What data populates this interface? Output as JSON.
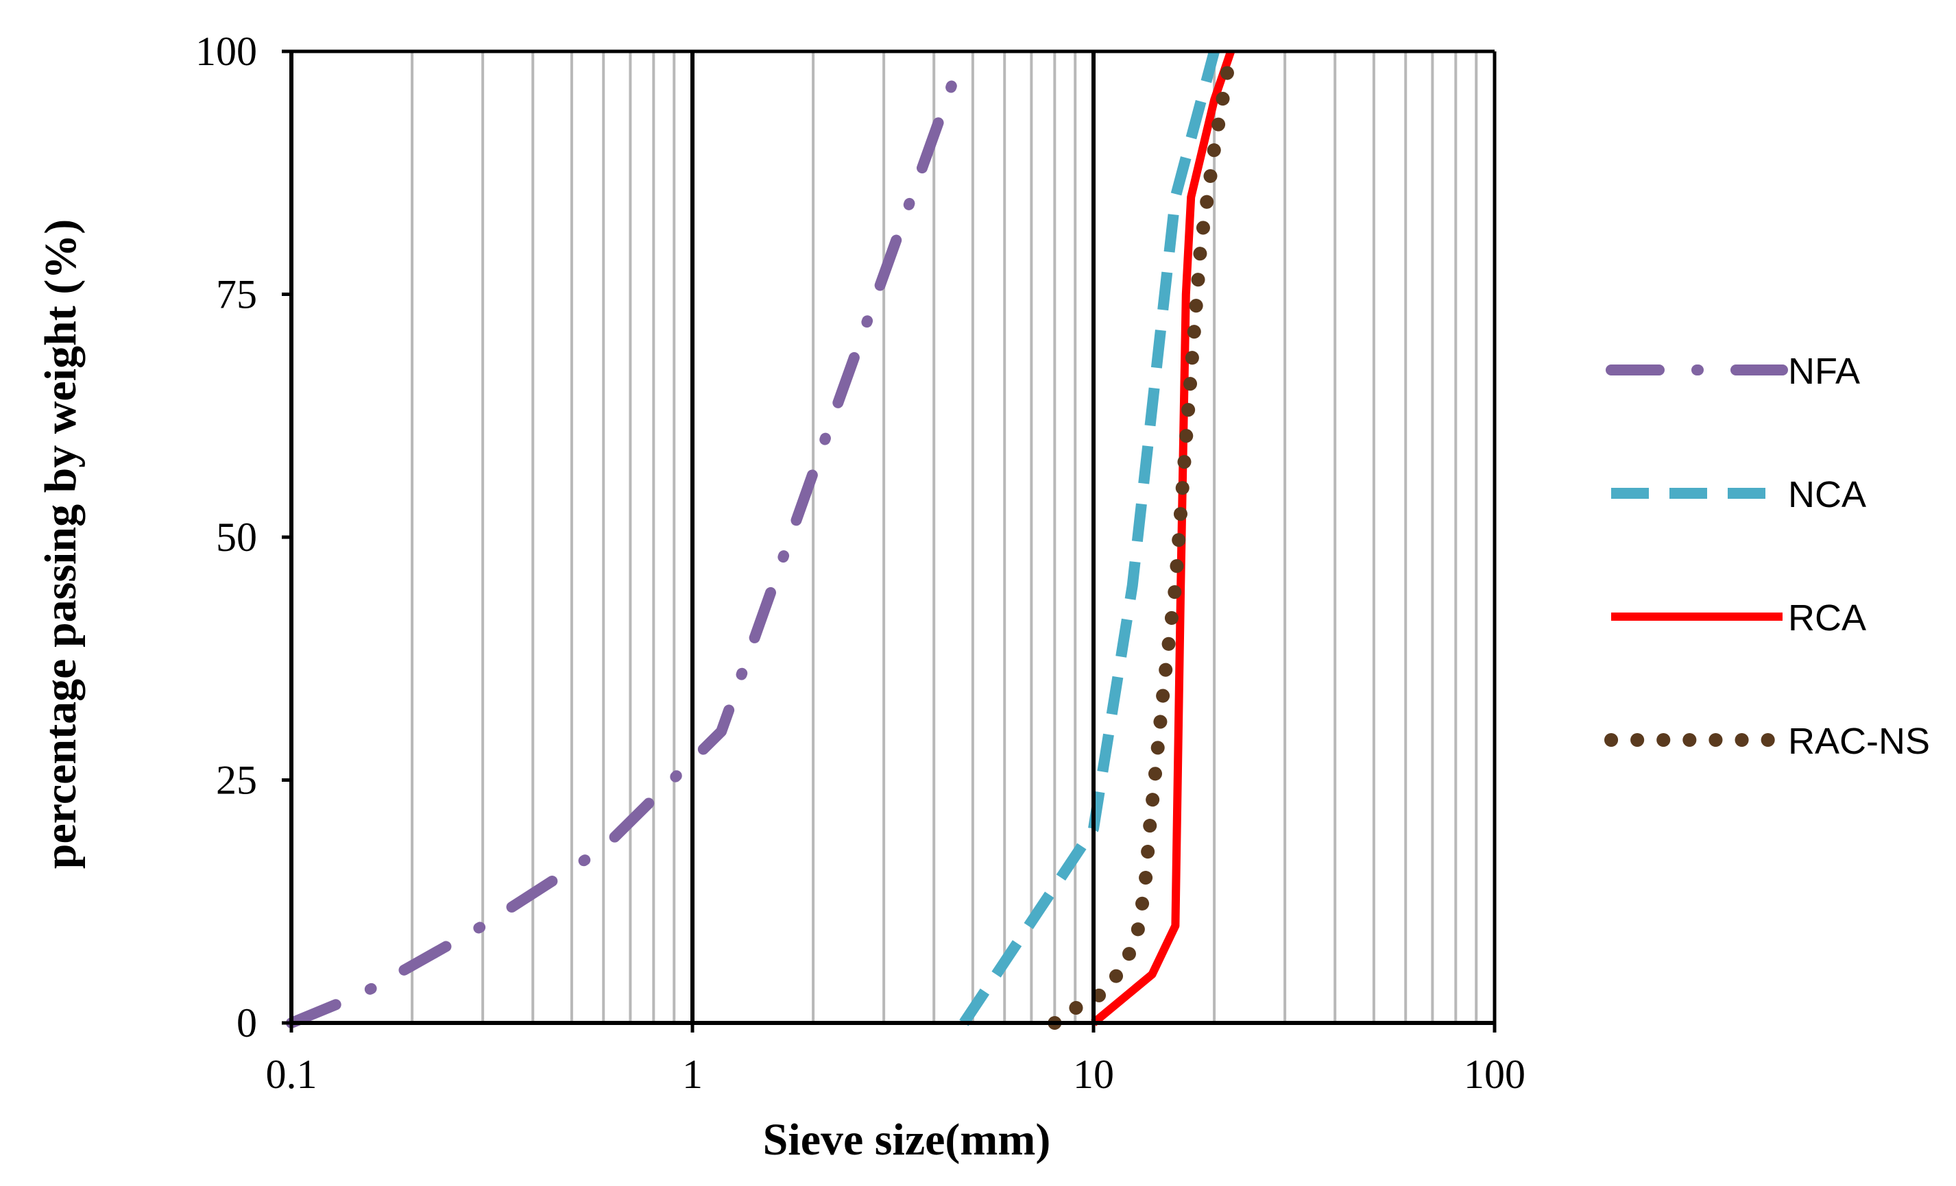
{
  "chart_data": {
    "type": "line",
    "title": "",
    "xlabel": "Sieve size(mm)",
    "ylabel": "percentage passing by weight (%)",
    "x_scale": "log",
    "xlim": [
      0.1,
      100
    ],
    "ylim": [
      0,
      100
    ],
    "x_ticks": [
      {
        "value": 0.1,
        "label": "0.1"
      },
      {
        "value": 1,
        "label": "1"
      },
      {
        "value": 10,
        "label": "10"
      },
      {
        "value": 100,
        "label": "100"
      }
    ],
    "y_ticks": [
      {
        "value": 0,
        "label": "0"
      },
      {
        "value": 25,
        "label": "25"
      },
      {
        "value": 50,
        "label": "50"
      },
      {
        "value": 75,
        "label": "75"
      },
      {
        "value": 100,
        "label": "100"
      }
    ],
    "grid": "vertical minor gridlines",
    "legend_position": "right",
    "series": [
      {
        "name": "NFA",
        "color": "#8064a2",
        "style": "long-dash-dot",
        "x": [
          0.1,
          0.15,
          0.3,
          0.6,
          1.18,
          2.36,
          4.75
        ],
        "y": [
          0,
          3,
          10,
          18,
          30,
          65,
          100
        ]
      },
      {
        "name": "NCA",
        "color": "#4bacc6",
        "style": "dash",
        "x": [
          4.75,
          10,
          12.5,
          16,
          20
        ],
        "y": [
          0,
          20,
          45,
          85,
          100
        ]
      },
      {
        "name": "RCA",
        "color": "#ff0000",
        "style": "solid",
        "x": [
          10,
          14,
          16,
          16.5,
          17,
          17.5,
          20,
          22
        ],
        "y": [
          0,
          5,
          10,
          45,
          75,
          85,
          95,
          100
        ]
      },
      {
        "name": "RAC-NS",
        "color": "#5a3a1e",
        "style": "dot",
        "x": [
          8,
          9,
          10.5,
          12,
          13,
          13.5,
          13.8,
          14.2,
          15,
          16,
          17,
          18.5,
          20,
          22
        ],
        "y": [
          0,
          1.5,
          3,
          6,
          10,
          15,
          20,
          25,
          35,
          45,
          60,
          80,
          90,
          100
        ]
      }
    ]
  }
}
